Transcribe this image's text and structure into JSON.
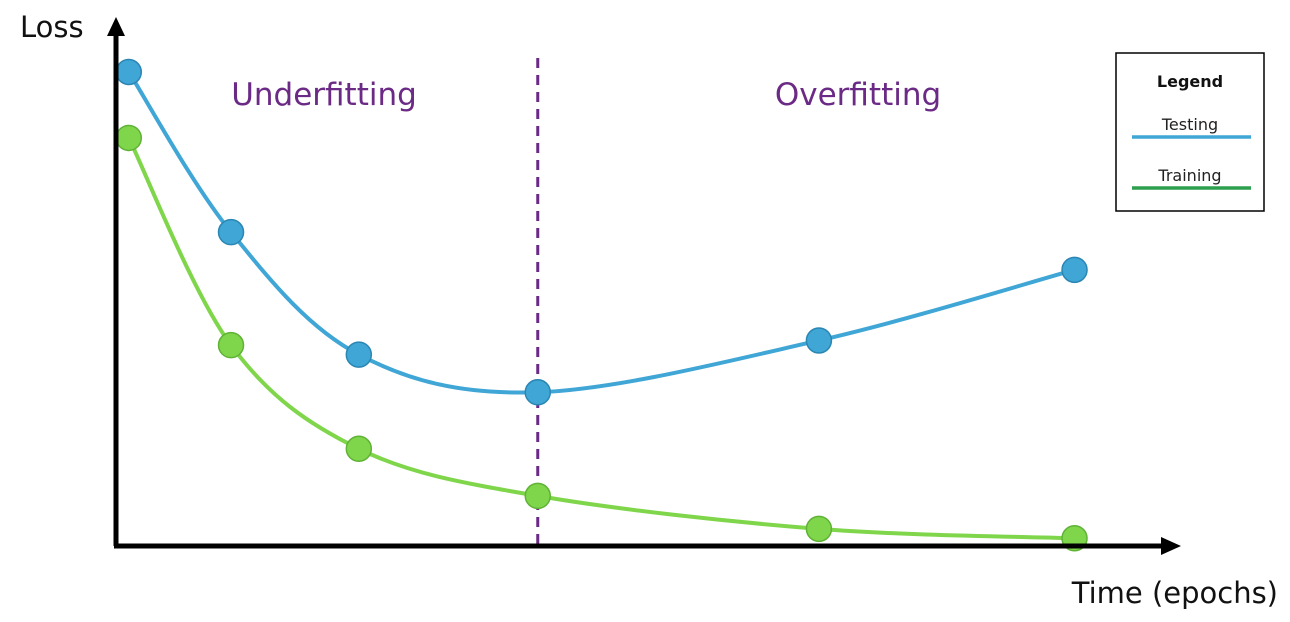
{
  "chart_data": {
    "type": "line",
    "ylabel": "Loss",
    "xlabel": "Time (epochs)",
    "x": [
      0.5,
      4.5,
      9.5,
      16.5,
      27.5,
      37.5
    ],
    "xlim": [
      0,
      41
    ],
    "ylim": [
      0,
      100
    ],
    "grid": false,
    "divider_x": 16.5,
    "regions": [
      {
        "label": "Underfitting"
      },
      {
        "label": "Overfitting"
      }
    ],
    "legend": {
      "title": "Legend",
      "placement": "top-right"
    },
    "series": [
      {
        "name": "Testing",
        "color": "#3fa6d6",
        "values": [
          100,
          66,
          40,
          32,
          43,
          58
        ]
      },
      {
        "name": "Training",
        "color": "#7fd64b",
        "values": [
          86,
          42,
          20,
          10,
          3,
          1
        ]
      }
    ],
    "colors": {
      "axis": "#000000",
      "divider": "#6b2a85",
      "region_label": "#6b2a85"
    }
  }
}
